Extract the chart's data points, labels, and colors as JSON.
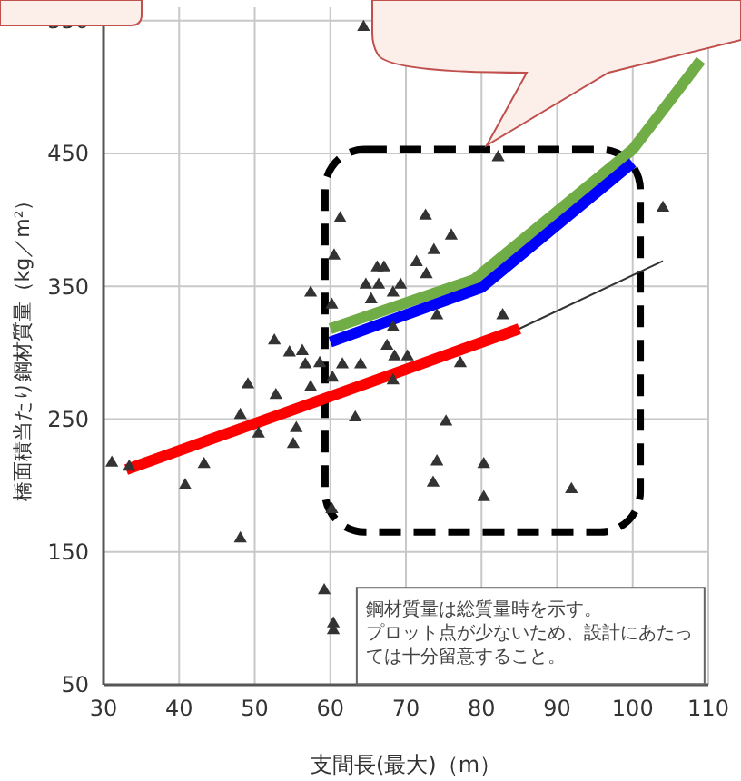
{
  "chart_data": {
    "type": "scatter",
    "xlabel": "支間長(最大)（m）",
    "ylabel": "橋面積当たり鋼材質量（kg／m²）",
    "xlim": [
      30,
      110
    ],
    "xticks": [
      30,
      40,
      50,
      60,
      70,
      80,
      90,
      100,
      110
    ],
    "ylim": [
      50,
      560
    ],
    "yticks": [
      50,
      150,
      250,
      350,
      450,
      550
    ],
    "grid": true,
    "annotations": [
      "鋼材質量は総質量時を示す。",
      "プロット点が少ないため、設計にあたっては十分留意すること。"
    ],
    "series": [
      {
        "marker": "triangle",
        "color": "#333333",
        "x": [
          64.4,
          82.2,
          61.3,
          72.6,
          76,
          73.7,
          71.4,
          66.2,
          67.1,
          72.7,
          64.7,
          66.4,
          69.3,
          60.5,
          57.4,
          65.4,
          68.3,
          60.2,
          74.1,
          82.8,
          68.3,
          52.6,
          54.6,
          56.3,
          67.5,
          68.5,
          56.7,
          58.6,
          61.6,
          64,
          70.2,
          77.2,
          49.1,
          57.4,
          60.3,
          52.8,
          48.1,
          55.5,
          50.5,
          55.1,
          63.3,
          75.3,
          68.3,
          31.1,
          33.4,
          40.8,
          43.3,
          74.1,
          73.6,
          80.3,
          80.3,
          91.9,
          48.1,
          59.2,
          60.4,
          60.4,
          60.2,
          104
        ],
        "values": [
          545,
          447,
          401,
          403,
          388,
          377,
          368,
          364,
          364,
          359,
          351,
          351,
          351,
          373,
          345,
          340,
          345,
          336,
          328,
          328,
          319,
          309,
          300,
          301,
          305,
          297,
          291,
          292,
          291,
          291,
          297,
          292,
          276,
          274,
          281,
          268,
          253,
          243,
          239,
          231,
          251,
          248,
          279,
          217,
          214,
          200,
          216,
          218,
          202,
          216,
          191,
          197,
          160,
          121,
          96,
          91,
          182,
          409
        ]
      },
      {
        "type": "line",
        "color": "#ff0000",
        "x": [
          33,
          85
        ],
        "values": [
          212,
          318
        ]
      },
      {
        "type": "line",
        "color": "#333333",
        "x": [
          85,
          104
        ],
        "values": [
          318,
          369
        ]
      },
      {
        "type": "line",
        "color": "#70ad47",
        "x": [
          60,
          79,
          100,
          109
        ],
        "values": [
          318,
          355,
          453,
          520
        ]
      },
      {
        "type": "line",
        "color": "#0000ff",
        "x": [
          60,
          80,
          100
        ],
        "values": [
          308,
          349,
          443
        ]
      }
    ]
  }
}
